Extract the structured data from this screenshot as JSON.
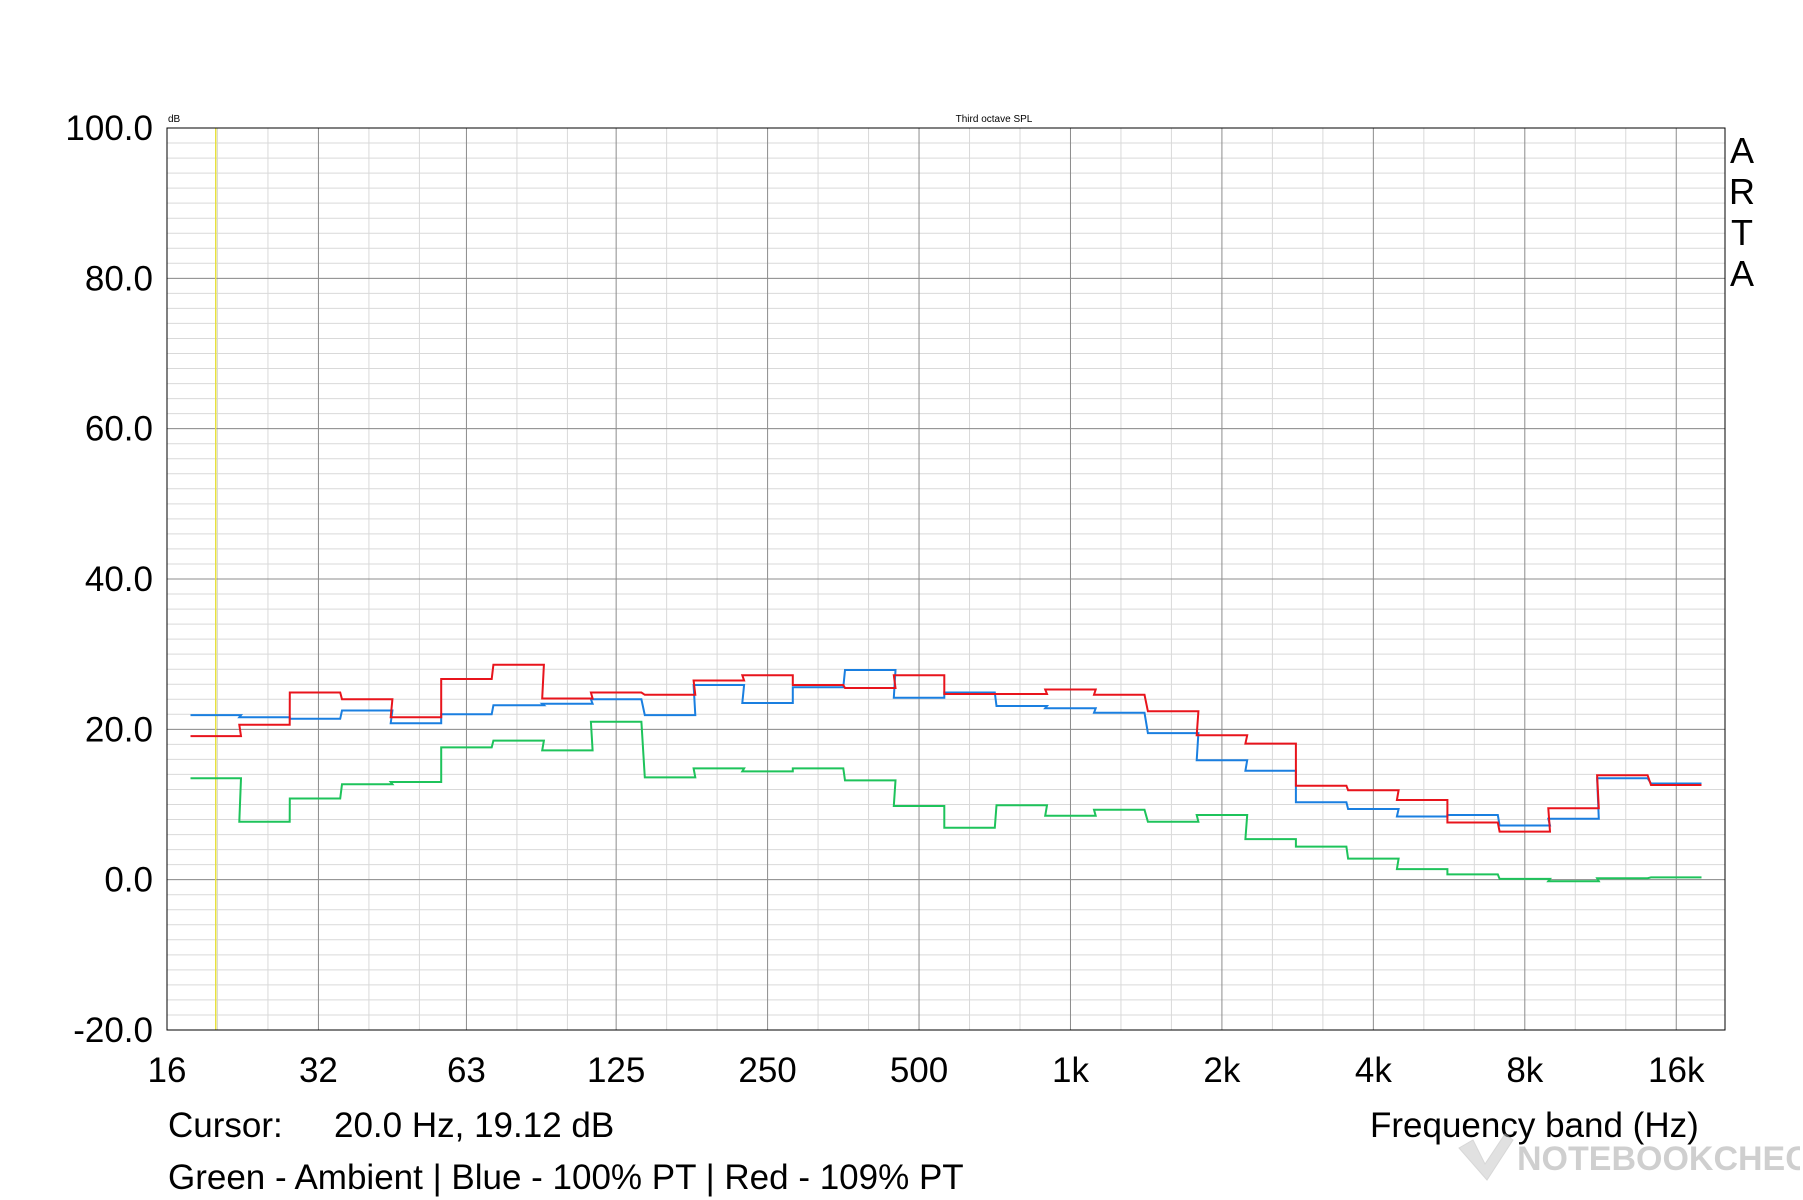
{
  "chart_data": {
    "type": "line",
    "step": true,
    "title": "Third octave SPL",
    "unit_label": "dB",
    "brand": "ARTA",
    "xlabel": "Frequency band (Hz)",
    "x_scale": "log",
    "xlim": [
      16,
      20000
    ],
    "ylim": [
      -20,
      100
    ],
    "y_ticks": [
      "100.0",
      "80.0",
      "60.0",
      "40.0",
      "20.0",
      "0.0",
      "-20.0"
    ],
    "y_tick_values": [
      100,
      80,
      60,
      40,
      20,
      0,
      -20
    ],
    "x_ticks": [
      "16",
      "32",
      "63",
      "125",
      "250",
      "500",
      "1k",
      "2k",
      "4k",
      "8k",
      "16k"
    ],
    "x_tick_values": [
      16,
      32,
      63,
      125,
      250,
      500,
      1000,
      2000,
      4000,
      8000,
      16000
    ],
    "cursor_freq_hz": 20,
    "grid": true,
    "bands_hz": [
      20,
      25,
      31.5,
      40,
      50,
      63,
      80,
      100,
      125,
      160,
      200,
      250,
      315,
      400,
      500,
      630,
      800,
      1000,
      1250,
      1600,
      2000,
      2500,
      3150,
      4000,
      5000,
      6300,
      8000,
      10000,
      12500,
      16000
    ],
    "series": [
      {
        "color": "#1ec35b",
        "values": [
          13.5,
          7.7,
          10.8,
          12.7,
          13.0,
          17.6,
          18.5,
          17.2,
          21.0,
          13.6,
          14.8,
          14.4,
          14.8,
          13.2,
          9.8,
          6.9,
          9.9,
          8.5,
          9.3,
          7.7,
          8.6,
          5.4,
          4.4,
          2.8,
          1.4,
          0.7,
          0.1,
          -0.2,
          0.2,
          0.3
        ]
      },
      {
        "color": "#1a7fe0",
        "values": [
          21.9,
          21.6,
          21.4,
          22.5,
          20.8,
          22.0,
          23.2,
          23.4,
          24.0,
          21.9,
          25.9,
          23.5,
          25.6,
          27.9,
          24.2,
          24.9,
          23.1,
          22.8,
          22.2,
          19.5,
          15.9,
          14.5,
          10.3,
          9.4,
          8.4,
          8.6,
          7.2,
          8.1,
          13.5,
          12.8
        ]
      },
      {
        "color": "#e8141c",
        "values": [
          19.1,
          20.6,
          24.9,
          24.0,
          21.6,
          26.7,
          28.6,
          24.1,
          24.9,
          24.6,
          26.5,
          27.2,
          25.9,
          25.5,
          27.2,
          24.7,
          24.7,
          25.3,
          24.6,
          22.4,
          19.2,
          18.1,
          12.5,
          11.9,
          10.6,
          7.6,
          6.4,
          9.5,
          13.9,
          12.6
        ]
      }
    ]
  },
  "footer": {
    "cursor_label": "Cursor:",
    "cursor_value": "20.0 Hz, 19.12 dB",
    "legend_text": "Green - Ambient | Blue - 100% PT | Red - 109% PT"
  },
  "watermark": {
    "text": "NOTEBOOKCHECK"
  }
}
